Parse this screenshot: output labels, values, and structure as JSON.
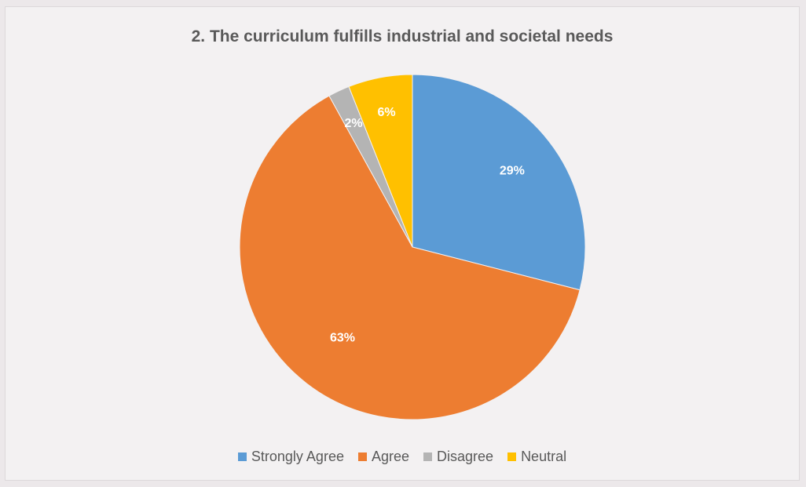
{
  "chart_data": {
    "type": "pie",
    "title": "2. The curriculum fulfills industrial and societal needs",
    "categories": [
      "Strongly Agree",
      "Agree",
      "Disagree",
      "Neutral"
    ],
    "values": [
      29,
      63,
      2,
      6
    ],
    "labels": [
      "29%",
      "63%",
      "2%",
      "6%"
    ],
    "colors": [
      "#5b9bd5",
      "#ed7d31",
      "#b4b4b4",
      "#ffc000"
    ],
    "legend_position": "bottom"
  }
}
